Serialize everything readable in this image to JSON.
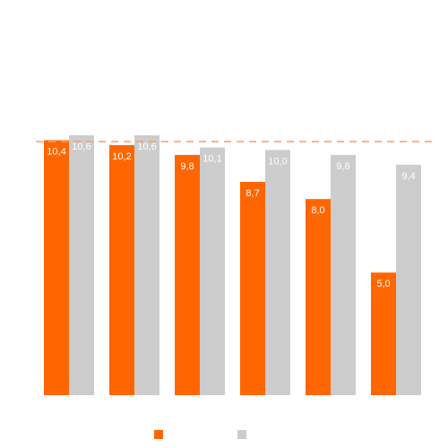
{
  "chart_data": {
    "type": "bar",
    "title": "",
    "xlabel": "",
    "ylabel": "",
    "categories": [
      "",
      "",
      "",
      "",
      "",
      ""
    ],
    "series": [
      {
        "color": "#ff6600",
        "values": [
          10.4,
          10.2,
          9.8,
          8.7,
          8.0,
          5.0
        ],
        "labels": [
          "10,4",
          "10,2",
          "9,8",
          "8,7",
          "8,0",
          "5,0"
        ]
      },
      {
        "color": "#cccccc",
        "values": [
          10.6,
          10.6,
          10.1,
          10.0,
          9.8,
          9.4
        ],
        "labels": [
          "10,6",
          "10,6",
          "10,1",
          "10,0",
          "9,8",
          "9,4"
        ]
      }
    ],
    "reference_line": {
      "value": 10.6,
      "style": "dashed",
      "color": "#ff9966"
    },
    "ylim": [
      0,
      10.6
    ],
    "grid": false,
    "legend": {
      "placement": "bottom",
      "entries": [
        "",
        ""
      ]
    }
  }
}
